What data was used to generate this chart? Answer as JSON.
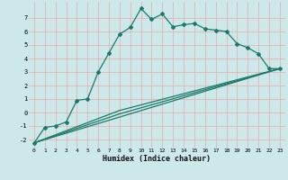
{
  "xlabel": "Humidex (Indice chaleur)",
  "bg_color": "#cce8e8",
  "line_color": "#1a7a6a",
  "grid_color": "#e8a8a8",
  "xlim": [
    -0.5,
    23.5
  ],
  "ylim": [
    -2.6,
    8.2
  ],
  "xticks": [
    0,
    1,
    2,
    3,
    4,
    5,
    6,
    7,
    8,
    9,
    10,
    11,
    12,
    13,
    14,
    15,
    16,
    17,
    18,
    19,
    20,
    21,
    22,
    23
  ],
  "yticks": [
    -2,
    -1,
    0,
    1,
    2,
    3,
    4,
    5,
    6,
    7
  ],
  "line1_x": [
    0,
    1,
    2,
    3,
    4,
    5,
    6,
    7,
    8,
    9,
    10,
    11,
    12,
    13,
    14,
    15,
    16,
    17,
    18,
    19,
    20,
    21,
    22,
    23
  ],
  "line1_y": [
    -2.25,
    -1.1,
    -1.0,
    -0.7,
    0.9,
    1.0,
    3.0,
    4.4,
    5.8,
    6.3,
    7.7,
    6.9,
    7.3,
    6.35,
    6.5,
    6.6,
    6.2,
    6.1,
    6.0,
    5.1,
    4.8,
    4.35,
    3.25,
    3.25
  ],
  "line2_x": [
    0,
    23
  ],
  "line2_y": [
    -2.25,
    3.25
  ],
  "line3_x": [
    0,
    8,
    23
  ],
  "line3_y": [
    -2.25,
    -0.1,
    3.25
  ],
  "line4_x": [
    0,
    8,
    23
  ],
  "line4_y": [
    -2.25,
    0.15,
    3.25
  ],
  "marker_size": 2.0,
  "lw": 0.9,
  "xlabel_fontsize": 6.0,
  "tick_fontsize": 4.5
}
